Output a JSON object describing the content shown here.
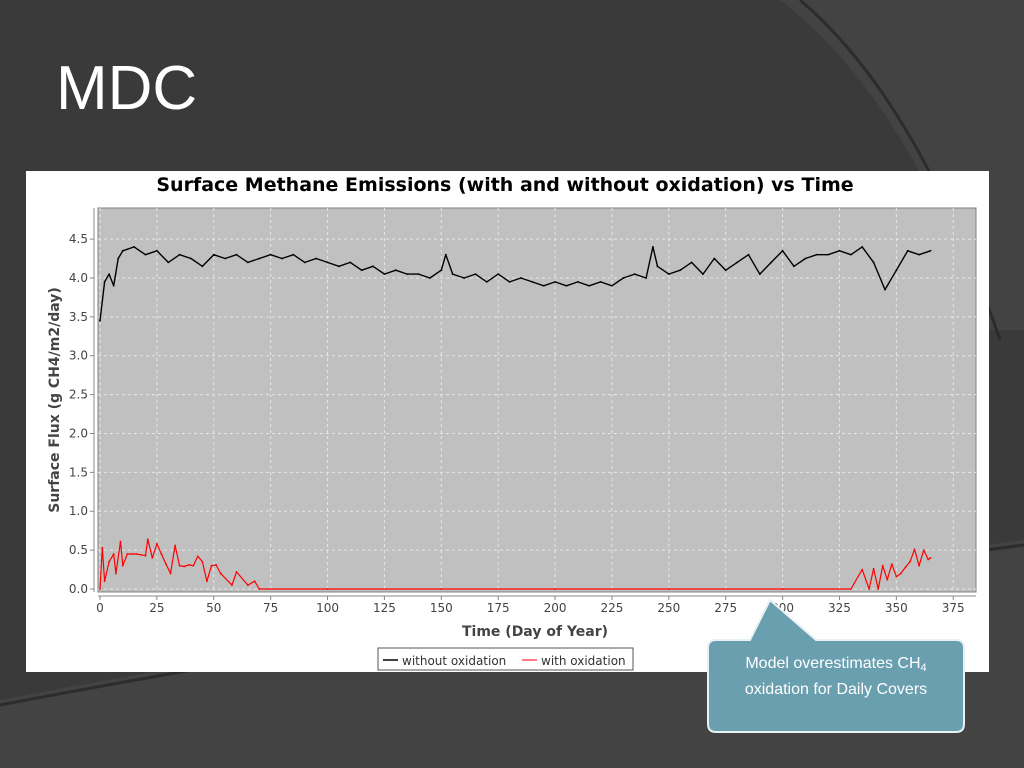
{
  "slide": {
    "title": "MDC",
    "callout": {
      "text_main": "Model overestimates CH",
      "text_sub": "4",
      "text_line2": "oxidation for Daily Covers",
      "fill": "#6a9fb0",
      "stroke": "#e8f2f5"
    }
  },
  "colors": {
    "background": "#3a3a3a",
    "plot_background": "#c0c0c0",
    "grid": "#e6e6e6",
    "series_without": "#000000",
    "series_with": "#ff0000"
  },
  "chart_data": {
    "type": "line",
    "title": "Surface Methane Emissions (with and without oxidation) vs Time",
    "xlabel": "Time (Day of Year)",
    "ylabel": "Surface Flux (g CH4/m2/day)",
    "xlim": [
      0,
      385
    ],
    "ylim": [
      0,
      4.9
    ],
    "xticks": [
      0,
      25,
      50,
      75,
      100,
      125,
      150,
      175,
      200,
      225,
      250,
      275,
      300,
      325,
      350,
      375
    ],
    "yticks": [
      "0.0",
      "0.5",
      "1.0",
      "1.5",
      "2.0",
      "2.5",
      "3.0",
      "3.5",
      "4.0",
      "4.5"
    ],
    "grid": true,
    "legend_position": "bottom-center",
    "series": [
      {
        "name": "without oxidation",
        "color": "#000000",
        "x": [
          0,
          2,
          4,
          6,
          8,
          10,
          15,
          20,
          25,
          30,
          35,
          40,
          45,
          50,
          55,
          60,
          65,
          70,
          75,
          80,
          85,
          90,
          95,
          100,
          105,
          110,
          115,
          120,
          125,
          130,
          135,
          140,
          145,
          150,
          152,
          155,
          160,
          165,
          170,
          175,
          180,
          185,
          190,
          195,
          200,
          205,
          210,
          215,
          220,
          225,
          230,
          235,
          240,
          243,
          245,
          250,
          255,
          260,
          265,
          270,
          275,
          280,
          285,
          290,
          295,
          300,
          305,
          310,
          315,
          320,
          325,
          330,
          335,
          340,
          345,
          350,
          355,
          360,
          365
        ],
        "y": [
          3.45,
          3.95,
          4.05,
          3.9,
          4.25,
          4.35,
          4.4,
          4.3,
          4.35,
          4.2,
          4.3,
          4.25,
          4.15,
          4.3,
          4.25,
          4.3,
          4.2,
          4.25,
          4.3,
          4.25,
          4.3,
          4.2,
          4.25,
          4.2,
          4.15,
          4.2,
          4.1,
          4.15,
          4.05,
          4.1,
          4.05,
          4.05,
          4.0,
          4.1,
          4.3,
          4.05,
          4.0,
          4.05,
          3.95,
          4.05,
          3.95,
          4.0,
          3.95,
          3.9,
          3.95,
          3.9,
          3.95,
          3.9,
          3.95,
          3.9,
          4.0,
          4.05,
          4.0,
          4.4,
          4.15,
          4.05,
          4.1,
          4.2,
          4.05,
          4.25,
          4.1,
          4.2,
          4.3,
          4.05,
          4.2,
          4.35,
          4.15,
          4.25,
          4.3,
          4.3,
          4.35,
          4.3,
          4.4,
          4.2,
          3.85,
          4.1,
          4.35,
          4.3,
          4.35
        ]
      },
      {
        "name": "with oxidation",
        "color": "#ff0000",
        "x": [
          0,
          1,
          2,
          4,
          6,
          7,
          9,
          10,
          12,
          14,
          16,
          18,
          20,
          21,
          23,
          25,
          27,
          29,
          31,
          33,
          35,
          37,
          39,
          41,
          43,
          45,
          47,
          49,
          51,
          53,
          58,
          60,
          65,
          68,
          70,
          100,
          150,
          200,
          250,
          300,
          330,
          335,
          338,
          340,
          342,
          344,
          346,
          348,
          350,
          352,
          354,
          356,
          358,
          360,
          362,
          364,
          365
        ],
        "y": [
          0.0,
          0.53,
          0.1,
          0.35,
          0.45,
          0.2,
          0.61,
          0.3,
          0.45,
          0.45,
          0.45,
          0.44,
          0.43,
          0.64,
          0.4,
          0.58,
          0.45,
          0.32,
          0.2,
          0.56,
          0.3,
          0.29,
          0.31,
          0.3,
          0.42,
          0.35,
          0.1,
          0.3,
          0.31,
          0.2,
          0.05,
          0.22,
          0.05,
          0.1,
          0.0,
          0.0,
          0.0,
          0.0,
          0.0,
          0.0,
          0.0,
          0.25,
          0.0,
          0.26,
          0.0,
          0.3,
          0.12,
          0.32,
          0.16,
          0.2,
          0.28,
          0.35,
          0.51,
          0.3,
          0.5,
          0.38,
          0.4
        ]
      }
    ]
  }
}
